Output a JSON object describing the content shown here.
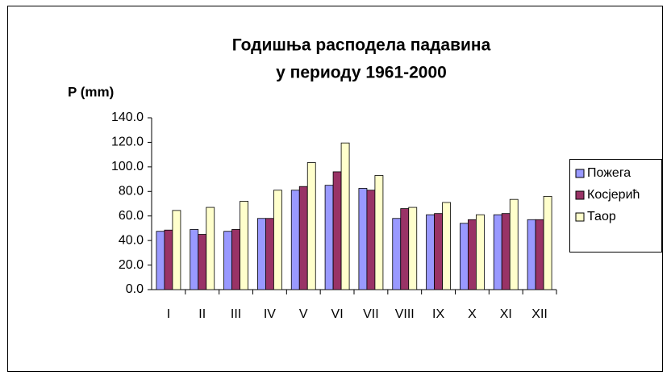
{
  "chart_data": {
    "type": "bar",
    "title_lines": [
      "Годишња расподела падавина",
      "у периоду 1961-2000"
    ],
    "y_label": "P (mm)",
    "categories": [
      "I",
      "II",
      "III",
      "IV",
      "V",
      "VI",
      "VII",
      "VIII",
      "IX",
      "X",
      "XI",
      "XII"
    ],
    "series": [
      {
        "name": "Пожега",
        "color": "#9999ff",
        "values": [
          47.5,
          49,
          47.5,
          58,
          81,
          85,
          82.5,
          58,
          61,
          54,
          61,
          57
        ]
      },
      {
        "name": "Косјерић",
        "color": "#993366",
        "values": [
          48.5,
          45,
          49,
          58,
          84,
          96,
          81,
          66,
          62,
          57,
          62,
          57
        ]
      },
      {
        "name": "Таор",
        "color": "#ffffcc",
        "values": [
          64.5,
          67,
          72,
          81,
          103.5,
          119.5,
          93,
          67,
          71,
          61,
          73.5,
          76
        ]
      }
    ],
    "ylim": [
      0,
      140
    ],
    "yticks": [
      {
        "value": 0,
        "label": "0.0"
      },
      {
        "value": 20,
        "label": "20.0"
      },
      {
        "value": 40,
        "label": "40.0"
      },
      {
        "value": 60,
        "label": "60.0"
      },
      {
        "value": 80,
        "label": "80.0"
      },
      {
        "value": 100,
        "label": "100.0"
      },
      {
        "value": 120,
        "label": "120.0"
      },
      {
        "value": 140,
        "label": "140.0"
      }
    ],
    "legend": "right"
  }
}
